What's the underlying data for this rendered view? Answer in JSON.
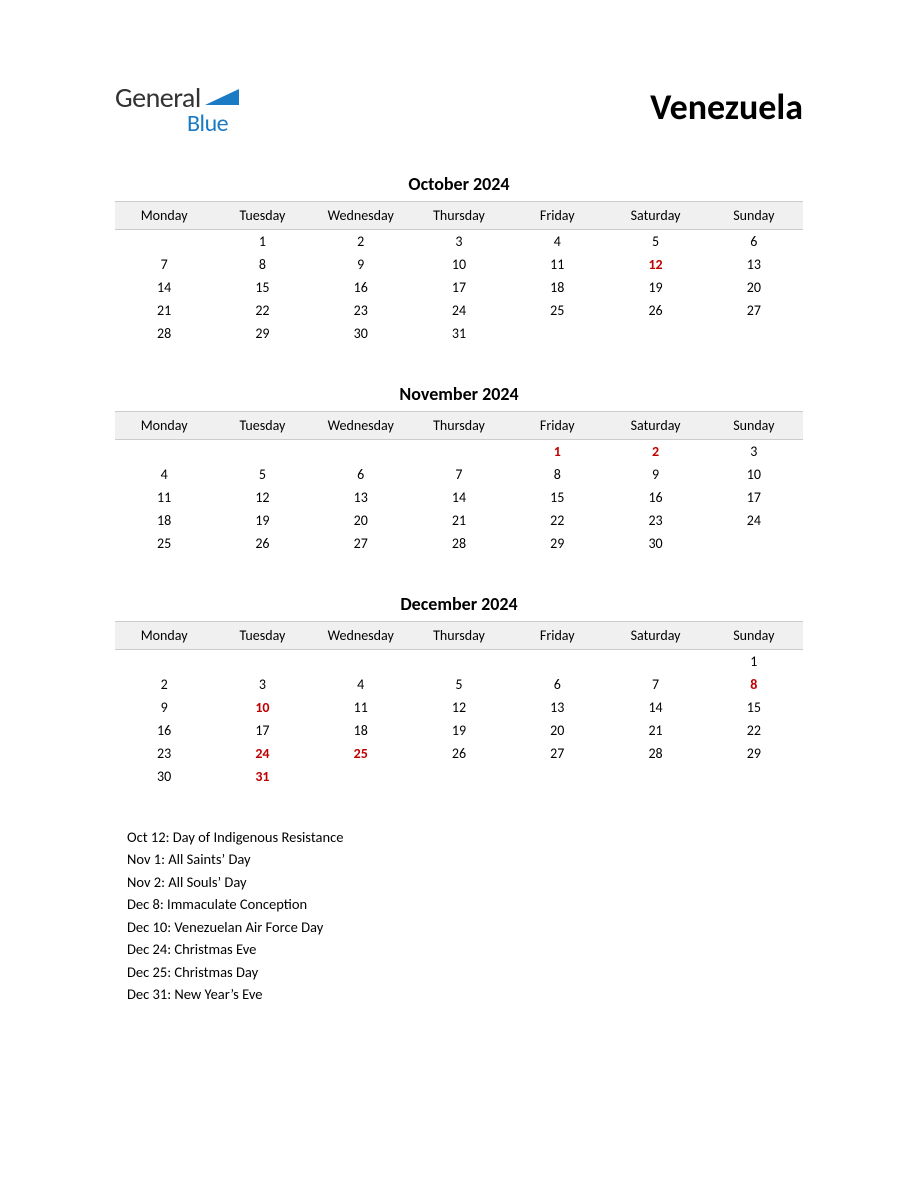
{
  "logo": {
    "text1": "General",
    "text2": "Blue",
    "tri_color": "#1a7bc4"
  },
  "country": "Venezuela",
  "text_color": "#000000",
  "holiday_color": "#c00000",
  "header_bg": "#f0f0f0",
  "border_color": "#cccccc",
  "day_headers": [
    "Monday",
    "Tuesday",
    "Wednesday",
    "Thursday",
    "Friday",
    "Saturday",
    "Sunday"
  ],
  "months": [
    {
      "title": "October 2024",
      "weeks": [
        [
          {
            "d": ""
          },
          {
            "d": "1"
          },
          {
            "d": "2"
          },
          {
            "d": "3"
          },
          {
            "d": "4"
          },
          {
            "d": "5"
          },
          {
            "d": "6"
          }
        ],
        [
          {
            "d": "7"
          },
          {
            "d": "8"
          },
          {
            "d": "9"
          },
          {
            "d": "10"
          },
          {
            "d": "11"
          },
          {
            "d": "12",
            "h": true
          },
          {
            "d": "13"
          }
        ],
        [
          {
            "d": "14"
          },
          {
            "d": "15"
          },
          {
            "d": "16"
          },
          {
            "d": "17"
          },
          {
            "d": "18"
          },
          {
            "d": "19"
          },
          {
            "d": "20"
          }
        ],
        [
          {
            "d": "21"
          },
          {
            "d": "22"
          },
          {
            "d": "23"
          },
          {
            "d": "24"
          },
          {
            "d": "25"
          },
          {
            "d": "26"
          },
          {
            "d": "27"
          }
        ],
        [
          {
            "d": "28"
          },
          {
            "d": "29"
          },
          {
            "d": "30"
          },
          {
            "d": "31"
          },
          {
            "d": ""
          },
          {
            "d": ""
          },
          {
            "d": ""
          }
        ]
      ]
    },
    {
      "title": "November 2024",
      "weeks": [
        [
          {
            "d": ""
          },
          {
            "d": ""
          },
          {
            "d": ""
          },
          {
            "d": ""
          },
          {
            "d": "1",
            "h": true
          },
          {
            "d": "2",
            "h": true
          },
          {
            "d": "3"
          }
        ],
        [
          {
            "d": "4"
          },
          {
            "d": "5"
          },
          {
            "d": "6"
          },
          {
            "d": "7"
          },
          {
            "d": "8"
          },
          {
            "d": "9"
          },
          {
            "d": "10"
          }
        ],
        [
          {
            "d": "11"
          },
          {
            "d": "12"
          },
          {
            "d": "13"
          },
          {
            "d": "14"
          },
          {
            "d": "15"
          },
          {
            "d": "16"
          },
          {
            "d": "17"
          }
        ],
        [
          {
            "d": "18"
          },
          {
            "d": "19"
          },
          {
            "d": "20"
          },
          {
            "d": "21"
          },
          {
            "d": "22"
          },
          {
            "d": "23"
          },
          {
            "d": "24"
          }
        ],
        [
          {
            "d": "25"
          },
          {
            "d": "26"
          },
          {
            "d": "27"
          },
          {
            "d": "28"
          },
          {
            "d": "29"
          },
          {
            "d": "30"
          },
          {
            "d": ""
          }
        ]
      ]
    },
    {
      "title": "December 2024",
      "weeks": [
        [
          {
            "d": ""
          },
          {
            "d": ""
          },
          {
            "d": ""
          },
          {
            "d": ""
          },
          {
            "d": ""
          },
          {
            "d": ""
          },
          {
            "d": "1"
          }
        ],
        [
          {
            "d": "2"
          },
          {
            "d": "3"
          },
          {
            "d": "4"
          },
          {
            "d": "5"
          },
          {
            "d": "6"
          },
          {
            "d": "7"
          },
          {
            "d": "8",
            "h": true
          }
        ],
        [
          {
            "d": "9"
          },
          {
            "d": "10",
            "h": true
          },
          {
            "d": "11"
          },
          {
            "d": "12"
          },
          {
            "d": "13"
          },
          {
            "d": "14"
          },
          {
            "d": "15"
          }
        ],
        [
          {
            "d": "16"
          },
          {
            "d": "17"
          },
          {
            "d": "18"
          },
          {
            "d": "19"
          },
          {
            "d": "20"
          },
          {
            "d": "21"
          },
          {
            "d": "22"
          }
        ],
        [
          {
            "d": "23"
          },
          {
            "d": "24",
            "h": true
          },
          {
            "d": "25",
            "h": true
          },
          {
            "d": "26"
          },
          {
            "d": "27"
          },
          {
            "d": "28"
          },
          {
            "d": "29"
          }
        ],
        [
          {
            "d": "30"
          },
          {
            "d": "31",
            "h": true
          },
          {
            "d": ""
          },
          {
            "d": ""
          },
          {
            "d": ""
          },
          {
            "d": ""
          },
          {
            "d": ""
          }
        ]
      ]
    }
  ],
  "holidays": [
    "Oct 12: Day of Indigenous Resistance",
    "Nov 1: All Saints’ Day",
    "Nov 2: All Souls’ Day",
    "Dec 8: Immaculate Conception",
    "Dec 10: Venezuelan Air Force Day",
    "Dec 24: Christmas Eve",
    "Dec 25: Christmas Day",
    "Dec 31: New Year’s Eve"
  ]
}
